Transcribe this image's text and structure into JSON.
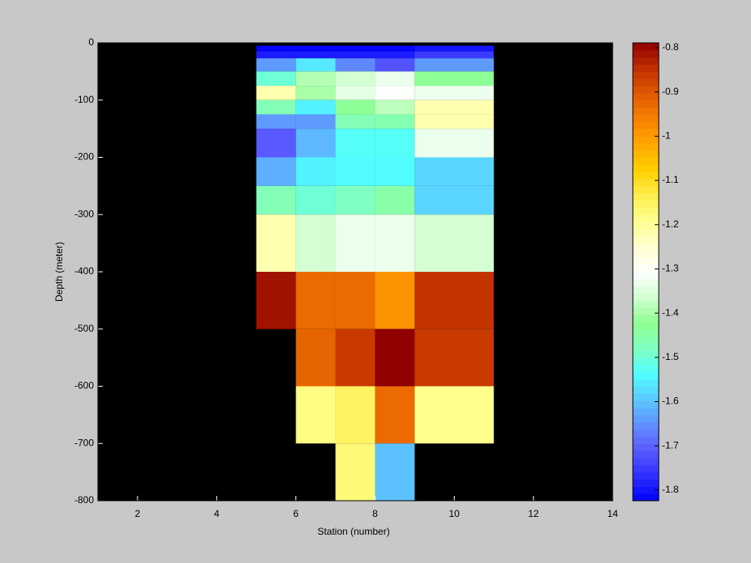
{
  "chart_data": {
    "type": "heatmap",
    "xlabel": "Station (number)",
    "ylabel": "Depth (meter)",
    "xlim": [
      1,
      14
    ],
    "xticks": [
      2,
      4,
      6,
      8,
      10,
      12,
      14
    ],
    "ylim": [
      -800,
      0
    ],
    "yticks": [
      0,
      -100,
      -200,
      -300,
      -400,
      -500,
      -600,
      -700,
      -800
    ],
    "background": "#000000",
    "x_edges": [
      5,
      6,
      7,
      8,
      9,
      11
    ],
    "y_edges": [
      -5,
      -15,
      -27,
      -50,
      -75,
      -100,
      -125,
      -150,
      -200,
      -250,
      -300,
      -400,
      -500,
      -600,
      -700,
      -800
    ],
    "z": [
      [
        -1.82,
        -1.82,
        -1.82,
        -1.82,
        -1.8
      ],
      [
        -1.79,
        -1.79,
        -1.79,
        -1.79,
        -1.75
      ],
      [
        -1.64,
        -1.56,
        -1.66,
        -1.72,
        -1.64
      ],
      [
        -1.5,
        -1.39,
        -1.36,
        -1.33,
        -1.43
      ],
      [
        -1.22,
        -1.4,
        -1.34,
        -1.31,
        -1.33
      ],
      [
        -1.47,
        -1.55,
        -1.43,
        -1.38,
        -1.22
      ],
      [
        -1.64,
        -1.64,
        -1.47,
        -1.46,
        -1.22
      ],
      [
        -1.71,
        -1.61,
        -1.53,
        -1.53,
        -1.33
      ],
      [
        -1.62,
        -1.55,
        -1.54,
        -1.54,
        -1.58
      ],
      [
        -1.47,
        -1.5,
        -1.48,
        -1.45,
        -1.58
      ],
      [
        -1.22,
        -1.36,
        -1.33,
        -1.33,
        -1.36
      ],
      [
        -0.81,
        -0.93,
        -0.93,
        -0.99,
        -0.85
      ],
      [
        null,
        -0.92,
        -0.86,
        -0.79,
        -0.86
      ],
      [
        null,
        -1.18,
        -1.15,
        -0.93,
        -1.19
      ],
      [
        null,
        null,
        -1.17,
        -1.6,
        null
      ]
    ],
    "clim": [
      -1.824,
      -0.789
    ],
    "colorbar_ticks": [
      -0.8,
      -0.9,
      -1,
      -1.1,
      -1.2,
      -1.3,
      -1.4,
      -1.5,
      -1.6,
      -1.7,
      -1.8
    ],
    "colormap": [
      "#0000ff",
      "#3030ff",
      "#5a5aff",
      "#6090ff",
      "#5cc8ff",
      "#50ffff",
      "#80ffc0",
      "#90ff90",
      "#d0ffd0",
      "#ffffff",
      "#ffffd0",
      "#ffff90",
      "#ffee50",
      "#ffd000",
      "#ffa800",
      "#f88000",
      "#e05a00",
      "#c03000",
      "#900000"
    ]
  }
}
